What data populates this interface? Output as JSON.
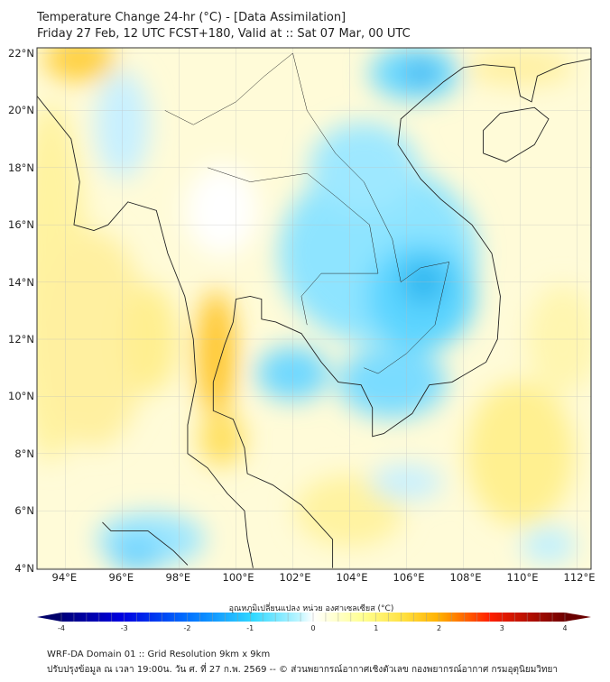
{
  "title": {
    "line1": "Temperature Change 24-hr (°C) - [Data Assimilation]",
    "line2": "Friday 27 Feb, 12 UTC FCST+180, Valid at :: Sat 07 Mar, 00 UTC"
  },
  "axes": {
    "lat_labels": [
      "22°N",
      "20°N",
      "18°N",
      "16°N",
      "14°N",
      "12°N",
      "10°N",
      "8°N",
      "6°N",
      "4°N"
    ],
    "lat_values": [
      22,
      20,
      18,
      16,
      14,
      12,
      10,
      8,
      6,
      4
    ],
    "lon_labels": [
      "94°E",
      "96°E",
      "98°E",
      "100°E",
      "102°E",
      "104°E",
      "106°E",
      "108°E",
      "110°E",
      "112°E"
    ],
    "lon_values": [
      94,
      96,
      98,
      100,
      102,
      104,
      106,
      108,
      110,
      112
    ]
  },
  "colorbar": {
    "label": "อุณหภูมิเปลี่ยนแปลง หน่วย องศาเซลเซียส (°C)",
    "ticks": [
      "-4",
      "-3",
      "-2",
      "-1",
      "0",
      "1",
      "2",
      "3",
      "4"
    ],
    "range": [
      -4,
      4
    ]
  },
  "footer": {
    "line1": "WRF-DA Domain 01 :: Grid Resolution 9km x 9km",
    "line2": "ปรับปรุงข้อมูล ณ เวลา 19:00น. วัน ศ. ที่ 27 ก.พ. 2569 -- © ส่วนพยากรณ์อากาศเชิงตัวเลข กองพยากรณ์อากาศ กรมอุตุนิยมวิทยา"
  }
}
